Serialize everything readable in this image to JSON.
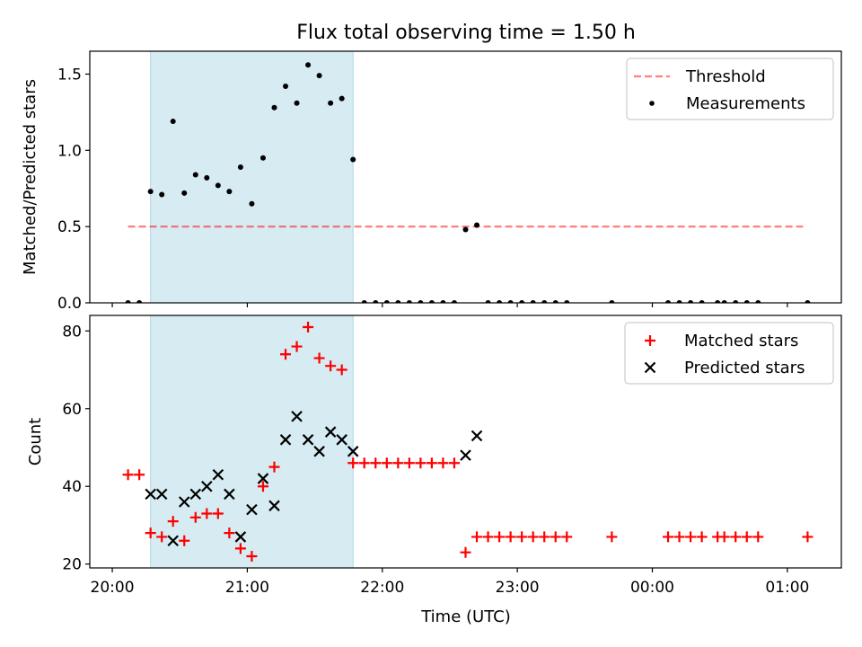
{
  "figure": {
    "title": "Flux total observing time = 1.50 h",
    "xlabel": "Time (UTC)"
  },
  "chart_data": [
    {
      "type": "scatter",
      "panel": "ratio",
      "ylabel": "Matched/Predicted stars",
      "xlim": [
        "2023-01-01T19:50",
        "2023-01-02T01:24"
      ],
      "ylim": [
        0,
        1.65
      ],
      "x_ticks": [
        "2023-01-01T20:00",
        "2023-01-01T21:00",
        "2023-01-01T22:00",
        "2023-01-01T23:00",
        "2023-01-02T00:00",
        "2023-01-02T01:00"
      ],
      "x_tick_labels": [
        "20:00",
        "21:00",
        "22:00",
        "23:00",
        "00:00",
        "01:00"
      ],
      "y_ticks": [
        0.0,
        0.5,
        1.0,
        1.5
      ],
      "y_tick_labels": [
        "0.0",
        "0.5",
        "1.0",
        "1.5"
      ],
      "shaded_span": {
        "x_start": "2023-01-01T20:17",
        "x_end": "2023-01-01T21:47",
        "color": "#add8e6"
      },
      "legend": {
        "position": "upper right",
        "entries": [
          "Threshold",
          "Measurements"
        ]
      },
      "series": [
        {
          "name": "Threshold",
          "style": "dashed-line",
          "color": "#ff0000",
          "x": [
            "2023-01-01T20:07",
            "2023-01-02T01:07"
          ],
          "y": [
            0.5,
            0.5
          ]
        },
        {
          "name": "Measurements",
          "style": "dot",
          "color": "#000000",
          "x": [
            "2023-01-01T20:07",
            "2023-01-01T20:12",
            "2023-01-01T20:17",
            "2023-01-01T20:22",
            "2023-01-01T20:27",
            "2023-01-01T20:32",
            "2023-01-01T20:37",
            "2023-01-01T20:42",
            "2023-01-01T20:47",
            "2023-01-01T20:52",
            "2023-01-01T20:57",
            "2023-01-01T21:02",
            "2023-01-01T21:07",
            "2023-01-01T21:12",
            "2023-01-01T21:17",
            "2023-01-01T21:22",
            "2023-01-01T21:27",
            "2023-01-01T21:32",
            "2023-01-01T21:37",
            "2023-01-01T21:42",
            "2023-01-01T21:47",
            "2023-01-01T21:52",
            "2023-01-01T21:57",
            "2023-01-01T22:02",
            "2023-01-01T22:07",
            "2023-01-01T22:12",
            "2023-01-01T22:17",
            "2023-01-01T22:22",
            "2023-01-01T22:27",
            "2023-01-01T22:32",
            "2023-01-01T22:37",
            "2023-01-01T22:42",
            "2023-01-01T22:47",
            "2023-01-01T22:52",
            "2023-01-01T22:57",
            "2023-01-01T23:02",
            "2023-01-01T23:07",
            "2023-01-01T23:12",
            "2023-01-01T23:17",
            "2023-01-01T23:22",
            "2023-01-01T23:42",
            "2023-01-02T00:07",
            "2023-01-02T00:12",
            "2023-01-02T00:17",
            "2023-01-02T00:22",
            "2023-01-02T00:29",
            "2023-01-02T00:32",
            "2023-01-02T00:37",
            "2023-01-02T00:42",
            "2023-01-02T00:47",
            "2023-01-02T01:09"
          ],
          "y": [
            0.0,
            0.0,
            0.73,
            0.71,
            1.19,
            0.72,
            0.84,
            0.82,
            0.77,
            0.73,
            0.89,
            0.65,
            0.95,
            1.28,
            1.42,
            1.31,
            1.56,
            1.49,
            1.31,
            1.34,
            0.94,
            0.0,
            0.0,
            0.0,
            0.0,
            0.0,
            0.0,
            0.0,
            0.0,
            0.0,
            0.48,
            0.51,
            0.0,
            0.0,
            0.0,
            0.0,
            0.0,
            0.0,
            0.0,
            0.0,
            0.0,
            0.0,
            0.0,
            0.0,
            0.0,
            0.0,
            0.0,
            0.0,
            0.0,
            0.0,
            0.0
          ]
        }
      ]
    },
    {
      "type": "scatter",
      "panel": "counts",
      "ylabel": "Count",
      "xlim": [
        "2023-01-01T19:50",
        "2023-01-02T01:24"
      ],
      "ylim": [
        19,
        84
      ],
      "x_ticks": [
        "2023-01-01T20:00",
        "2023-01-01T21:00",
        "2023-01-01T22:00",
        "2023-01-01T23:00",
        "2023-01-02T00:00",
        "2023-01-02T01:00"
      ],
      "x_tick_labels": [
        "20:00",
        "21:00",
        "22:00",
        "23:00",
        "00:00",
        "01:00"
      ],
      "y_ticks": [
        20,
        40,
        60,
        80
      ],
      "y_tick_labels": [
        "20",
        "40",
        "60",
        "80"
      ],
      "shaded_span": {
        "x_start": "2023-01-01T20:17",
        "x_end": "2023-01-01T21:47",
        "color": "#add8e6"
      },
      "legend": {
        "position": "upper right",
        "entries": [
          "Matched stars",
          "Predicted stars"
        ]
      },
      "series": [
        {
          "name": "Matched stars",
          "marker": "plus",
          "color": "#ff0000",
          "x": [
            "2023-01-01T20:07",
            "2023-01-01T20:12",
            "2023-01-01T20:17",
            "2023-01-01T20:22",
            "2023-01-01T20:27",
            "2023-01-01T20:32",
            "2023-01-01T20:37",
            "2023-01-01T20:42",
            "2023-01-01T20:47",
            "2023-01-01T20:52",
            "2023-01-01T20:57",
            "2023-01-01T21:02",
            "2023-01-01T21:07",
            "2023-01-01T21:12",
            "2023-01-01T21:17",
            "2023-01-01T21:22",
            "2023-01-01T21:27",
            "2023-01-01T21:32",
            "2023-01-01T21:37",
            "2023-01-01T21:42",
            "2023-01-01T21:47",
            "2023-01-01T21:52",
            "2023-01-01T21:57",
            "2023-01-01T22:02",
            "2023-01-01T22:07",
            "2023-01-01T22:12",
            "2023-01-01T22:17",
            "2023-01-01T22:22",
            "2023-01-01T22:27",
            "2023-01-01T22:32",
            "2023-01-01T22:37",
            "2023-01-01T22:42",
            "2023-01-01T22:47",
            "2023-01-01T22:52",
            "2023-01-01T22:57",
            "2023-01-01T23:02",
            "2023-01-01T23:07",
            "2023-01-01T23:12",
            "2023-01-01T23:17",
            "2023-01-01T23:22",
            "2023-01-01T23:42",
            "2023-01-02T00:07",
            "2023-01-02T00:12",
            "2023-01-02T00:17",
            "2023-01-02T00:22",
            "2023-01-02T00:29",
            "2023-01-02T00:32",
            "2023-01-02T00:37",
            "2023-01-02T00:42",
            "2023-01-02T00:47",
            "2023-01-02T01:09"
          ],
          "y": [
            43,
            43,
            28,
            27,
            31,
            26,
            32,
            33,
            33,
            28,
            24,
            22,
            40,
            45,
            74,
            76,
            81,
            73,
            71,
            70,
            46,
            46,
            46,
            46,
            46,
            46,
            46,
            46,
            46,
            46,
            23,
            27,
            27,
            27,
            27,
            27,
            27,
            27,
            27,
            27,
            27,
            27,
            27,
            27,
            27,
            27,
            27,
            27,
            27,
            27,
            27
          ]
        },
        {
          "name": "Predicted stars",
          "marker": "x",
          "color": "#000000",
          "x": [
            "2023-01-01T20:17",
            "2023-01-01T20:22",
            "2023-01-01T20:27",
            "2023-01-01T20:32",
            "2023-01-01T20:37",
            "2023-01-01T20:42",
            "2023-01-01T20:47",
            "2023-01-01T20:52",
            "2023-01-01T20:57",
            "2023-01-01T21:02",
            "2023-01-01T21:07",
            "2023-01-01T21:12",
            "2023-01-01T21:17",
            "2023-01-01T21:22",
            "2023-01-01T21:27",
            "2023-01-01T21:32",
            "2023-01-01T21:37",
            "2023-01-01T21:42",
            "2023-01-01T21:47",
            "2023-01-01T22:37",
            "2023-01-01T22:42"
          ],
          "y": [
            38,
            38,
            26,
            36,
            38,
            40,
            43,
            38,
            27,
            34,
            42,
            35,
            52,
            58,
            52,
            49,
            54,
            52,
            49,
            48,
            53
          ]
        }
      ]
    }
  ]
}
